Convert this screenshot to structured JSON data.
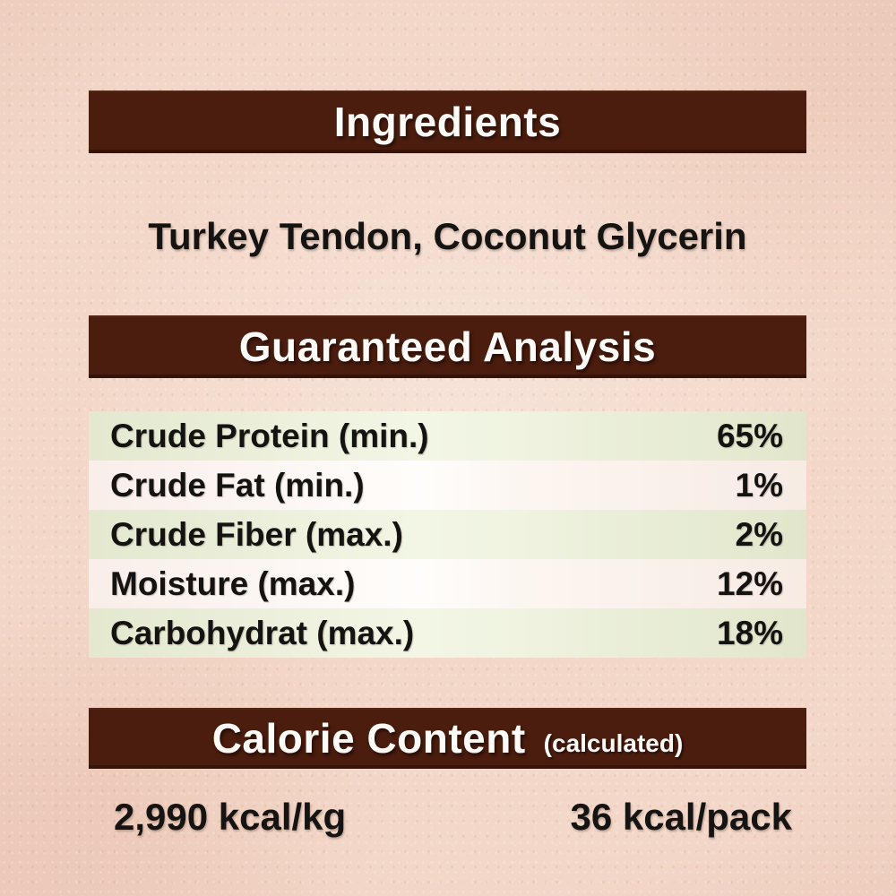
{
  "colors": {
    "background": "#f3d8c9",
    "header_bar": "#4a1d0e",
    "header_text": "#fdfbf8",
    "body_text": "#141311",
    "row_green": "#e9eed8",
    "row_pink": "#faf1ec"
  },
  "sections": {
    "ingredients": {
      "title": "Ingredients",
      "content": "Turkey Tendon, Coconut Glycerin"
    },
    "guaranteed_analysis": {
      "title": "Guaranteed Analysis",
      "rows": [
        {
          "label": "Crude Protein (min.)",
          "value": "65%"
        },
        {
          "label": "Crude Fat (min.)",
          "value": "1%"
        },
        {
          "label": "Crude Fiber (max.)",
          "value": "2%"
        },
        {
          "label": "Moisture (max.)",
          "value": "12%"
        },
        {
          "label": "Carbohydrat (max.)",
          "value": "18%"
        }
      ]
    },
    "calorie_content": {
      "title": "Calorie Content",
      "subtitle": "(calculated)",
      "per_kg": "2,990 kcal/kg",
      "per_pack": "36 kcal/pack"
    }
  }
}
